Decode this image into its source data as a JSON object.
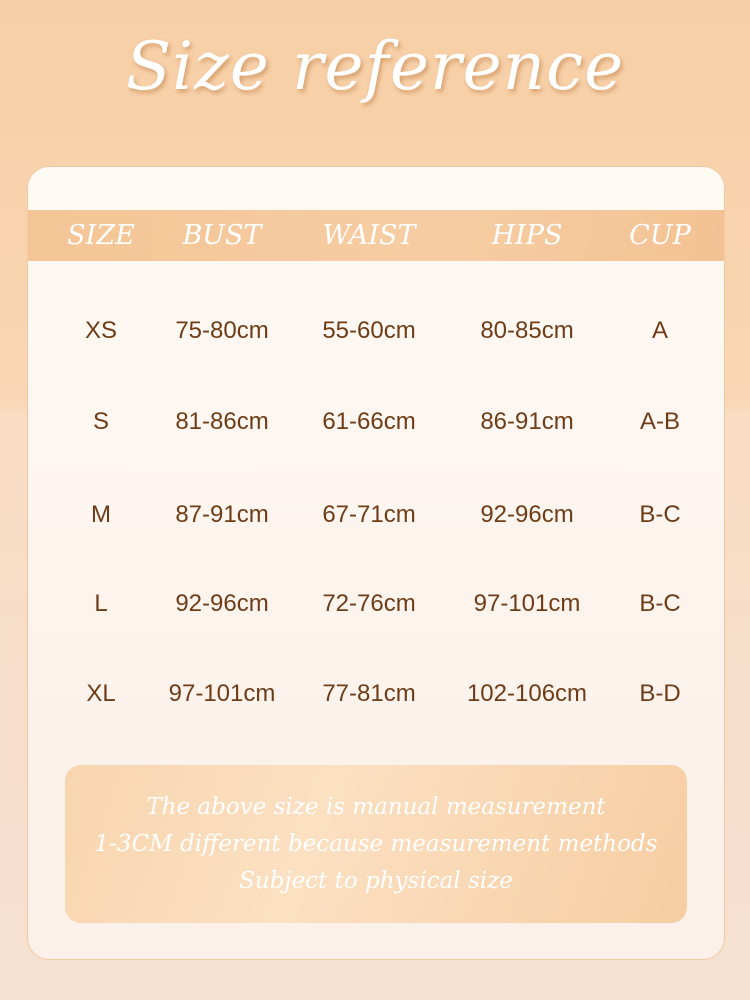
{
  "title": "Size reference",
  "table": {
    "headers": [
      "SIZE",
      "BUST",
      "WAIST",
      "HIPS",
      "CUP"
    ],
    "rows": [
      [
        "XS",
        "75-80cm",
        "55-60cm",
        "80-85cm",
        "A"
      ],
      [
        "S",
        "81-86cm",
        "61-66cm",
        "86-91cm",
        "A-B"
      ],
      [
        "M",
        "87-91cm",
        "67-71cm",
        "92-96cm",
        "B-C"
      ],
      [
        "L",
        "92-96cm",
        "72-76cm",
        "97-101cm",
        "B-C"
      ],
      [
        "XL",
        "97-101cm",
        "77-81cm",
        "102-106cm",
        "B-D"
      ]
    ]
  },
  "note": {
    "lines": [
      "The above size is manual measurement",
      "1-3CM different because  measurement methods",
      "Subject to physical size"
    ]
  },
  "colors": {
    "header_band": "#f4c596",
    "value_text": "#6e3d17",
    "note_bg": "#f8d5ae"
  }
}
